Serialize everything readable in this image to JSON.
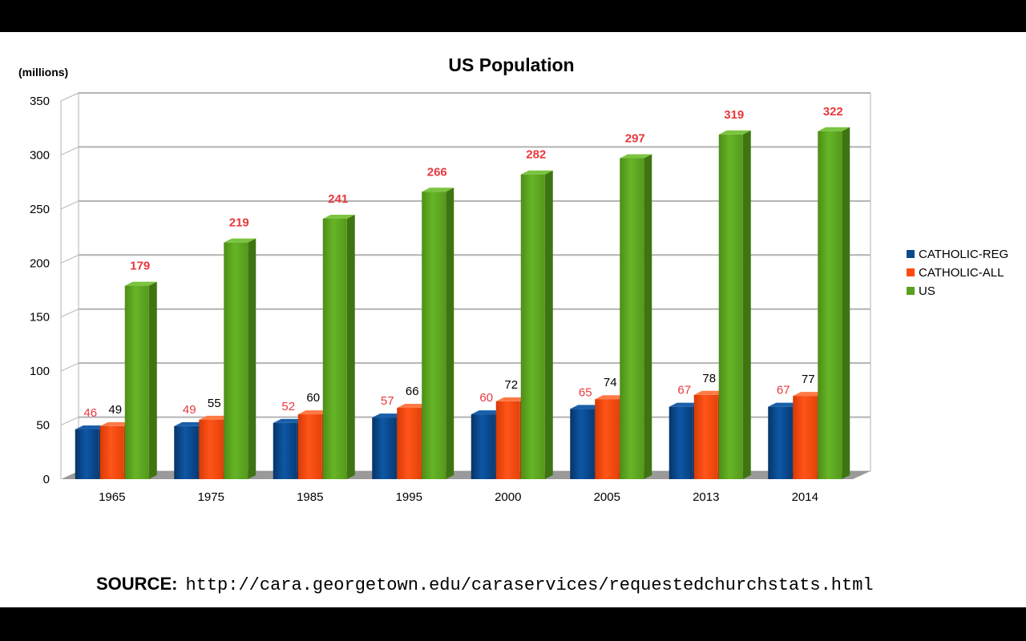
{
  "chart_data": {
    "type": "bar",
    "title": "US Population",
    "ylabel": "(millions)",
    "xlabel": "",
    "categories": [
      "1965",
      "1975",
      "1985",
      "1995",
      "2000",
      "2005",
      "2013",
      "2014"
    ],
    "series": [
      {
        "name": "CATHOLIC-REG",
        "color": "#0a4a8f",
        "values": [
          46,
          49,
          52,
          57,
          60,
          65,
          67,
          67
        ],
        "label_color": "#e8383d"
      },
      {
        "name": "CATHOLIC-ALL",
        "color": "#ff4a0f",
        "values": [
          49,
          55,
          60,
          66,
          72,
          74,
          78,
          77
        ],
        "label_color": "#000000"
      },
      {
        "name": "US",
        "color": "#5aa11e",
        "values": [
          179,
          219,
          241,
          266,
          282,
          297,
          319,
          322
        ],
        "label_color": "#e8383d"
      }
    ],
    "ylim": [
      0,
      350
    ],
    "yticks": [
      0,
      50,
      100,
      150,
      200,
      250,
      300,
      350
    ],
    "grid": true,
    "legend": "right"
  },
  "source": {
    "label": "SOURCE:",
    "url": "http://cara.georgetown.edu/caraservices/requestedchurchstats.html"
  }
}
